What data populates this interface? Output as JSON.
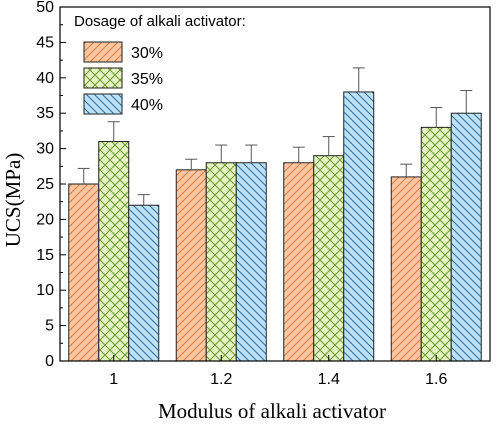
{
  "chart_data": {
    "type": "bar",
    "title": "",
    "xlabel": "Modulus of alkali activator",
    "ylabel": "UCS(MPa)",
    "ylim": [
      0,
      50
    ],
    "yticks": [
      0,
      5,
      10,
      15,
      20,
      25,
      30,
      35,
      40,
      45,
      50
    ],
    "categories": [
      "1",
      "1.2",
      "1.4",
      "1.6"
    ],
    "legend_title": "Dosage of alkali activator:",
    "legend_position": "top-left",
    "grid": false,
    "series": [
      {
        "name": "30%",
        "values": [
          25,
          27,
          28,
          26
        ],
        "errors": [
          2.2,
          1.5,
          2.2,
          1.8
        ],
        "fill": "#f7c7a4",
        "pattern": "diagonal-left",
        "pattern_color": "#e07b39"
      },
      {
        "name": "35%",
        "values": [
          31,
          28,
          29,
          33
        ],
        "errors": [
          2.8,
          2.5,
          2.7,
          2.8
        ],
        "fill": "#e4f2c4",
        "pattern": "crosshatch",
        "pattern_color": "#6e9a2c"
      },
      {
        "name": "40%",
        "values": [
          22,
          28,
          38,
          35
        ],
        "errors": [
          1.5,
          2.5,
          3.4,
          3.2
        ],
        "fill": "#bfe2f3",
        "pattern": "diagonal-right",
        "pattern_color": "#2c6ea6"
      }
    ]
  }
}
